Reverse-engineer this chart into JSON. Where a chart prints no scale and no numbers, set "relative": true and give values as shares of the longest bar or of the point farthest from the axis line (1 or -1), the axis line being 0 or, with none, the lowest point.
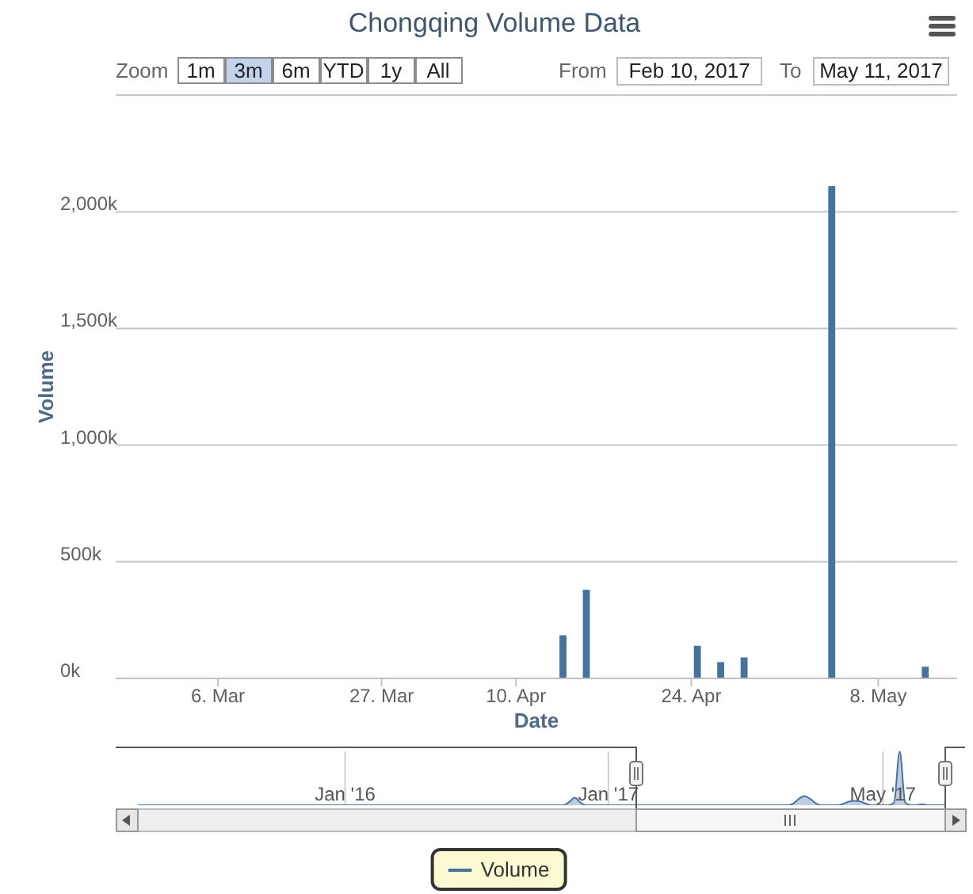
{
  "chart_data": [
    {
      "type": "bar",
      "title": "Chongqing Volume Data",
      "xlabel": "Date",
      "ylabel": "Volume",
      "categories": [
        null,
        null,
        null,
        null,
        null,
        null,
        null,
        null,
        null,
        null,
        null,
        null,
        null,
        null,
        null,
        null,
        null,
        "6. Mar",
        null,
        null,
        null,
        null,
        null,
        null,
        null,
        null,
        null,
        null,
        null,
        null,
        null,
        null,
        null,
        null,
        null,
        null,
        null,
        null,
        null,
        null,
        null,
        null,
        null,
        null,
        null,
        "27. Mar",
        null,
        null,
        null,
        null,
        null,
        null,
        null,
        null,
        null,
        null,
        null,
        null,
        null,
        null,
        null,
        null,
        null,
        null,
        null,
        null,
        null,
        null,
        "10. Apr",
        null,
        null,
        null,
        null,
        null,
        null,
        null,
        null,
        null,
        null,
        null,
        null,
        null,
        null,
        null,
        null,
        null,
        null,
        null,
        null,
        null,
        null,
        null,
        null,
        null,
        null,
        null,
        null,
        null,
        "24. Apr",
        null,
        null,
        null,
        null,
        null,
        null,
        null,
        null,
        null,
        null,
        null,
        null,
        null,
        null,
        null,
        null,
        null,
        null,
        null,
        null,
        null,
        null,
        null,
        null,
        null,
        null,
        null,
        null,
        null,
        null,
        null,
        "8. May",
        null,
        null,
        null,
        null,
        null,
        null,
        null,
        null,
        null,
        null,
        null,
        null,
        null
      ],
      "series": [
        {
          "name": "Volume",
          "color": "#44739f",
          "values": [
            null,
            null,
            null,
            null,
            null,
            null,
            null,
            null,
            null,
            null,
            null,
            null,
            null,
            null,
            null,
            null,
            null,
            null,
            null,
            null,
            null,
            null,
            null,
            null,
            null,
            null,
            null,
            null,
            null,
            null,
            null,
            null,
            null,
            null,
            null,
            null,
            null,
            null,
            null,
            null,
            null,
            null,
            null,
            null,
            null,
            null,
            null,
            null,
            null,
            null,
            null,
            null,
            null,
            null,
            null,
            null,
            null,
            null,
            null,
            null,
            null,
            null,
            null,
            null,
            null,
            null,
            null,
            null,
            null,
            null,
            null,
            null,
            null,
            null,
            null,
            null,
            185000,
            null,
            null,
            null,
            380000,
            null,
            null,
            null,
            null,
            null,
            null,
            null,
            null,
            null,
            null,
            null,
            null,
            null,
            null,
            null,
            null,
            null,
            null,
            140000,
            null,
            null,
            null,
            70000,
            null,
            null,
            null,
            90000,
            null,
            null,
            null,
            null,
            null,
            null,
            null,
            null,
            null,
            null,
            null,
            null,
            null,
            null,
            2110000,
            null,
            null,
            null,
            null,
            null,
            null,
            null,
            null,
            null,
            null,
            null,
            null,
            null,
            null,
            null,
            50000,
            null,
            null,
            null,
            null,
            null
          ]
        }
      ],
      "ylim": [
        0,
        2500000
      ],
      "yticks": [
        {
          "value": 0,
          "label": "0k"
        },
        {
          "value": 500000,
          "label": "500k"
        },
        {
          "value": 1000000,
          "label": "1,000k"
        },
        {
          "value": 1500000,
          "label": "1,500k"
        },
        {
          "value": 2000000,
          "label": "2,000k"
        },
        {
          "value": 2500000,
          "label": null
        }
      ],
      "grid": "y",
      "legend": "bottom",
      "annotations": [
        "Zoom",
        "1m",
        "3m",
        "6m",
        "YTD",
        "1y",
        "All",
        "From",
        "Feb 10, 2017",
        "To",
        "May 11, 2017"
      ]
    },
    {
      "type": "area",
      "relative": true,
      "color": "#4572a7",
      "grid": "x",
      "categories": [
        null,
        null,
        null,
        null,
        null,
        null,
        null,
        null,
        null,
        null,
        null,
        null,
        null,
        null,
        null,
        null,
        null,
        null,
        null,
        null,
        null,
        null,
        null,
        null,
        null,
        null,
        null,
        null,
        null,
        null,
        null,
        null,
        null,
        null,
        null,
        null,
        null,
        "Jan '16",
        null,
        null,
        null,
        null,
        null,
        null,
        null,
        null,
        null,
        null,
        null,
        null,
        null,
        null,
        null,
        null,
        null,
        null,
        null,
        null,
        null,
        null,
        null,
        null,
        null,
        null,
        null,
        null,
        null,
        null,
        null,
        null,
        null,
        null,
        null,
        null,
        null,
        null,
        null,
        null,
        null,
        null,
        null,
        null,
        null,
        null,
        "Jan '17",
        null,
        null,
        null,
        null,
        null,
        null,
        null,
        null,
        null,
        null,
        null,
        null,
        null,
        null,
        null,
        null,
        null,
        null,
        null,
        null,
        null,
        null,
        null,
        null,
        null,
        null,
        null,
        null,
        null,
        null,
        null,
        null,
        null,
        null,
        null,
        null,
        null,
        null,
        null,
        null,
        null,
        null,
        null,
        null,
        null,
        null,
        null,
        null,
        "May '17",
        null,
        null,
        null,
        null,
        null,
        null,
        null,
        null,
        null,
        null,
        null
      ],
      "values": [
        0,
        0,
        0,
        0,
        0,
        0,
        0,
        0,
        0,
        0,
        0,
        0,
        0,
        0,
        0,
        0,
        0,
        0,
        0,
        0,
        0,
        0,
        0,
        0,
        0,
        0,
        0,
        0,
        0,
        0,
        0,
        0,
        0,
        0,
        0,
        0,
        0,
        0,
        0,
        0,
        0,
        0,
        0,
        0,
        0,
        0,
        0,
        0,
        0,
        0,
        0,
        0,
        0,
        0,
        0,
        0,
        0,
        0,
        0,
        0,
        0,
        0,
        0,
        0,
        0,
        0,
        0,
        0,
        0,
        0,
        0,
        0,
        0,
        0,
        0,
        0,
        0,
        0.06,
        0.14,
        0.05,
        0,
        0,
        0,
        0,
        0,
        0,
        0,
        0,
        0,
        0,
        0,
        0,
        0,
        0,
        0,
        0,
        0,
        0,
        0,
        0,
        0,
        0,
        0,
        0,
        0,
        0,
        0,
        0,
        0,
        0,
        0,
        0,
        0,
        0,
        0,
        0,
        0,
        0.03,
        0.12,
        0.17,
        0.12,
        0.04,
        0,
        0,
        0,
        0,
        0.03,
        0.07,
        0.08,
        0.07,
        0.03,
        0,
        0,
        0,
        0,
        0.05,
        1,
        0.05,
        0,
        0,
        0.02,
        0,
        0,
        0,
        0
      ]
    }
  ]
}
